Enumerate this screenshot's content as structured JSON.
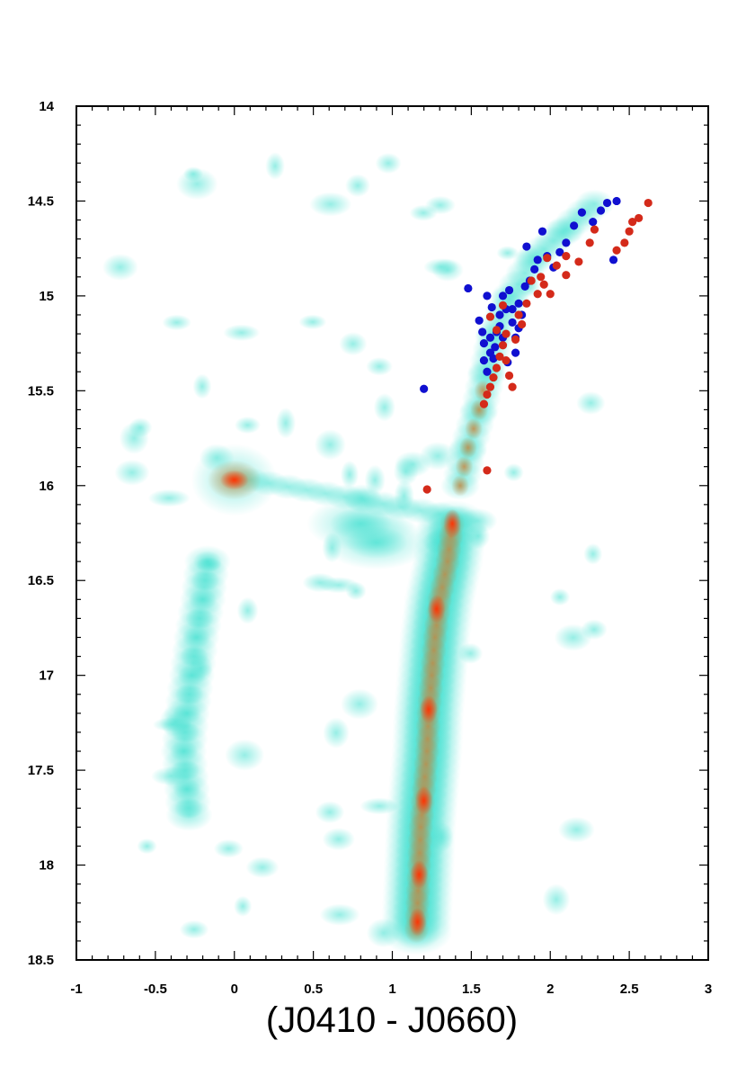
{
  "chart_data": {
    "type": "scatter",
    "title": "",
    "xlabel": "(J0410 - J0660)",
    "ylabel": "",
    "xlim": [
      -1,
      3
    ],
    "ylim": [
      18.5,
      14
    ],
    "y_inverted": true,
    "x_ticks": [
      "-1",
      "-0.5",
      "0",
      "0.5",
      "1",
      "1.5",
      "2",
      "2.5",
      "3"
    ],
    "y_ticks": [
      "14",
      "14.5",
      "15",
      "15.5",
      "16",
      "16.5",
      "17",
      "17.5",
      "18",
      "18.5"
    ],
    "grid": false,
    "background": {
      "kind": "density",
      "colors": {
        "low": "#40e0d0",
        "mid": "#c8843c",
        "high": "#ff3000"
      },
      "components": [
        {
          "name": "main-sequence",
          "points": [
            [
              1.38,
              16.2
            ],
            [
              1.35,
              16.4
            ],
            [
              1.3,
              16.6
            ],
            [
              1.27,
              16.8
            ],
            [
              1.25,
              17.0
            ],
            [
              1.23,
              17.2
            ],
            [
              1.22,
              17.4
            ],
            [
              1.2,
              17.6
            ],
            [
              1.18,
              17.8
            ],
            [
              1.17,
              18.0
            ],
            [
              1.16,
              18.2
            ],
            [
              1.15,
              18.4
            ]
          ]
        },
        {
          "name": "giant-branch",
          "points": [
            [
              1.43,
              16.0
            ],
            [
              1.48,
              15.8
            ],
            [
              1.55,
              15.6
            ],
            [
              1.6,
              15.4
            ],
            [
              1.65,
              15.2
            ],
            [
              1.75,
              15.0
            ],
            [
              1.9,
              14.8
            ],
            [
              2.1,
              14.65
            ],
            [
              2.3,
              14.5
            ]
          ]
        },
        {
          "name": "red-clump",
          "points": [
            [
              0.0,
              15.97
            ]
          ]
        },
        {
          "name": "blue-sequence",
          "points": [
            [
              -0.17,
              16.4
            ],
            [
              -0.2,
              16.6
            ],
            [
              -0.24,
              16.8
            ],
            [
              -0.27,
              17.0
            ],
            [
              -0.3,
              17.2
            ],
            [
              -0.32,
              17.4
            ],
            [
              -0.3,
              17.6
            ],
            [
              -0.28,
              17.8
            ]
          ]
        },
        {
          "name": "subgiant-clump",
          "points": [
            [
              0.8,
              16.2
            ],
            [
              0.9,
              16.3
            ]
          ]
        }
      ]
    },
    "series": [
      {
        "color": "#1010d0",
        "points": [
          [
            1.2,
            15.49
          ],
          [
            1.48,
            14.96
          ],
          [
            1.55,
            15.13
          ],
          [
            1.57,
            15.19
          ],
          [
            1.6,
            15.0
          ],
          [
            1.62,
            15.22
          ],
          [
            1.65,
            15.27
          ],
          [
            1.58,
            15.34
          ],
          [
            1.6,
            15.4
          ],
          [
            1.62,
            15.3
          ],
          [
            1.66,
            15.19
          ],
          [
            1.68,
            15.1
          ],
          [
            1.7,
            15.0
          ],
          [
            1.72,
            15.07
          ],
          [
            1.74,
            14.97
          ],
          [
            1.76,
            15.14
          ],
          [
            1.78,
            15.22
          ],
          [
            1.8,
            15.04
          ],
          [
            1.82,
            15.1
          ],
          [
            1.84,
            14.95
          ],
          [
            1.85,
            14.74
          ],
          [
            1.87,
            14.92
          ],
          [
            1.9,
            14.86
          ],
          [
            1.92,
            14.81
          ],
          [
            1.95,
            14.66
          ],
          [
            1.98,
            14.79
          ],
          [
            2.02,
            14.85
          ],
          [
            2.06,
            14.77
          ],
          [
            2.1,
            14.72
          ],
          [
            2.15,
            14.63
          ],
          [
            2.2,
            14.56
          ],
          [
            2.27,
            14.61
          ],
          [
            2.32,
            14.55
          ],
          [
            2.36,
            14.51
          ],
          [
            2.42,
            14.5
          ],
          [
            2.4,
            14.81
          ],
          [
            1.73,
            15.35
          ],
          [
            1.68,
            15.16
          ],
          [
            1.64,
            15.33
          ],
          [
            1.63,
            15.06
          ],
          [
            1.7,
            15.22
          ],
          [
            1.78,
            15.3
          ],
          [
            1.76,
            15.07
          ],
          [
            1.58,
            15.25
          ],
          [
            1.8,
            15.17
          ]
        ]
      },
      {
        "color": "#d42a1a",
        "points": [
          [
            1.22,
            16.02
          ],
          [
            1.6,
            15.92
          ],
          [
            1.58,
            15.57
          ],
          [
            1.6,
            15.52
          ],
          [
            1.62,
            15.48
          ],
          [
            1.64,
            15.43
          ],
          [
            1.66,
            15.38
          ],
          [
            1.68,
            15.32
          ],
          [
            1.7,
            15.26
          ],
          [
            1.72,
            15.2
          ],
          [
            1.74,
            15.42
          ],
          [
            1.76,
            15.48
          ],
          [
            1.78,
            15.23
          ],
          [
            1.8,
            15.1
          ],
          [
            1.82,
            15.15
          ],
          [
            1.85,
            15.04
          ],
          [
            1.88,
            14.92
          ],
          [
            1.92,
            14.99
          ],
          [
            1.96,
            14.94
          ],
          [
            2.0,
            14.99
          ],
          [
            2.04,
            14.84
          ],
          [
            2.1,
            14.79
          ],
          [
            2.18,
            14.82
          ],
          [
            2.25,
            14.72
          ],
          [
            2.28,
            14.65
          ],
          [
            2.42,
            14.76
          ],
          [
            2.47,
            14.72
          ],
          [
            2.5,
            14.66
          ],
          [
            2.52,
            14.61
          ],
          [
            2.56,
            14.59
          ],
          [
            2.62,
            14.51
          ],
          [
            1.94,
            14.9
          ],
          [
            1.98,
            14.8
          ],
          [
            2.1,
            14.89
          ],
          [
            1.7,
            15.05
          ],
          [
            1.62,
            15.11
          ],
          [
            1.66,
            15.18
          ],
          [
            1.72,
            15.34
          ]
        ]
      }
    ]
  }
}
